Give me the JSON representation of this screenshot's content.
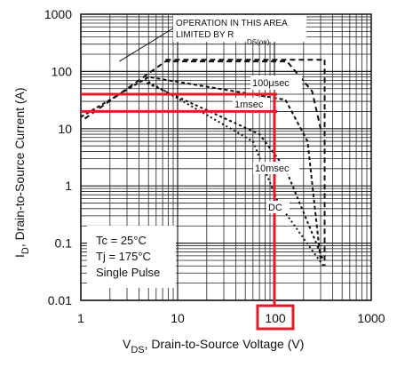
{
  "chart_data": {
    "type": "line",
    "title": "",
    "x_scale": "log",
    "y_scale": "log",
    "xlim": [
      1,
      1000
    ],
    "ylim": [
      0.01,
      1000
    ],
    "xlabel": {
      "main": "V",
      "sub": "DS",
      "rest": ", Drain-to-Source Voltage (V)"
    },
    "ylabel": {
      "main": "I",
      "sub": "D",
      "rest": ", Drain-to-Source Current (A)"
    },
    "x_ticks": [
      {
        "value": 1,
        "label": "1"
      },
      {
        "value": 10,
        "label": "10"
      },
      {
        "value": 100,
        "label": "100"
      },
      {
        "value": 1000,
        "label": "1000"
      }
    ],
    "y_ticks": [
      {
        "value": 0.01,
        "label": "0.01"
      },
      {
        "value": 0.1,
        "label": "0.1"
      },
      {
        "value": 1,
        "label": "1"
      },
      {
        "value": 10,
        "label": "10"
      },
      {
        "value": 100,
        "label": "100"
      },
      {
        "value": 1000,
        "label": "1000"
      }
    ],
    "grid": true,
    "annotations": {
      "operation_line1": "OPERATION IN THIS AREA",
      "operation_line2": "LIMITED BY R",
      "operation_sub": "DS(on)"
    },
    "legend_box": {
      "placement": "bottom-left",
      "lines": [
        "Tc = 25°C",
        "Tj = 175°C",
        "Single Pulse"
      ]
    },
    "series": [
      {
        "name": "100μsec",
        "x": [
          1.1,
          7.5,
          135,
          245,
          300
        ],
        "y": [
          15,
          150,
          150,
          45,
          10
        ]
      },
      {
        "name": "1msec",
        "x": [
          1.0,
          5.0,
          130,
          220,
          300
        ],
        "y": [
          16,
          80,
          32,
          6,
          0.05
        ]
      },
      {
        "name": "10msec",
        "x": [
          4.8,
          70,
          130,
          320
        ],
        "y": [
          63,
          8,
          2,
          0.05
        ]
      },
      {
        "name": "DC",
        "x": [
          4.6,
          60,
          110,
          320
        ],
        "y": [
          72,
          6,
          0.5,
          0.04
        ]
      }
    ],
    "limits": {
      "id_max_dashed": 160,
      "vds_max_dashed": 330,
      "rdson_line": {
        "x": [
          1.1,
          7.5
        ],
        "y": [
          15,
          150
        ]
      }
    },
    "highlight_lines": {
      "y_high": 40,
      "y_low": 20,
      "x_value": 100
    },
    "highlight_label": "100",
    "colors": {
      "highlight": "#e31a2a",
      "curves": "#111111",
      "grid": "#222222"
    }
  }
}
